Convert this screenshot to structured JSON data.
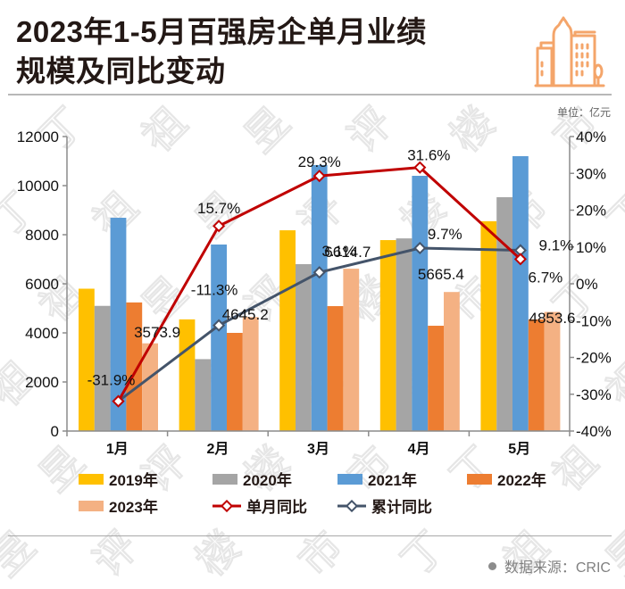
{
  "header": {
    "title_line1": "2023年1-5月百强房企单月业绩",
    "title_line2": "规模及同比变动",
    "icon": "city-buildings-icon",
    "unit_label": "单位：亿元"
  },
  "footer": {
    "source_label": "数据来源：CRIC"
  },
  "watermark_text": [
    "丁",
    "祖",
    "昱",
    "评",
    "楼",
    "市"
  ],
  "colors": {
    "2019": "#FFC000",
    "2020": "#A5A5A5",
    "2021": "#5B9BD5",
    "2022": "#ED7D31",
    "2023": "#F4B183",
    "monthly_yoy": "#C00000",
    "cumulative_yoy": "#44546A",
    "icon": "#F4A56A"
  },
  "chart_data": {
    "type": "bar",
    "title": "2023年1-5月百强房企单月业绩规模及同比变动",
    "unit": "亿元",
    "categories": [
      "1月",
      "2月",
      "3月",
      "4月",
      "5月"
    ],
    "series": [
      {
        "name": "2019年",
        "type": "bar",
        "axis": "left",
        "values": [
          5800,
          4550,
          8180,
          7780,
          8550
        ]
      },
      {
        "name": "2020年",
        "type": "bar",
        "axis": "left",
        "values": [
          5100,
          2930,
          6800,
          7850,
          9530
        ]
      },
      {
        "name": "2021年",
        "type": "bar",
        "axis": "left",
        "values": [
          8690,
          7600,
          10840,
          10400,
          11200
        ]
      },
      {
        "name": "2022年",
        "type": "bar",
        "axis": "left",
        "values": [
          5240,
          4000,
          5090,
          4290,
          4550
        ]
      },
      {
        "name": "2023年",
        "type": "bar",
        "axis": "left",
        "values": [
          3573.9,
          4645.2,
          6614.7,
          5665.4,
          4853.6
        ],
        "labels": [
          "3573.9",
          "4645.2",
          "6614.7",
          "5665.4",
          "4853.6"
        ]
      },
      {
        "name": "单月同比",
        "type": "line",
        "axis": "right",
        "values": [
          -31.9,
          15.7,
          29.3,
          31.6,
          6.7
        ],
        "labels": [
          "-31.9%",
          "15.7%",
          "29.3%",
          "31.6%",
          "6.7%"
        ]
      },
      {
        "name": "累计同比",
        "type": "line",
        "axis": "right",
        "values": [
          -31.9,
          -11.3,
          3.1,
          9.7,
          9.1
        ],
        "labels": [
          "",
          "-11.3%",
          "3.1%",
          "9.7%",
          "9.1%"
        ]
      }
    ],
    "y_left": {
      "min": 0,
      "max": 12000,
      "ticks": [
        0,
        2000,
        4000,
        6000,
        8000,
        10000,
        12000
      ],
      "tick_labels": [
        "0",
        "2000",
        "4000",
        "6000",
        "8000",
        "10000",
        "12000"
      ]
    },
    "y_right": {
      "min": -40,
      "max": 40,
      "ticks": [
        -40,
        -30,
        -20,
        -10,
        0,
        10,
        20,
        30,
        40
      ],
      "tick_labels": [
        "-40%",
        "-30%",
        "-20%",
        "-10%",
        "0%",
        "10%",
        "20%",
        "30%",
        "40%"
      ]
    },
    "xlabel": "",
    "grid": false,
    "legend_position": "bottom"
  }
}
